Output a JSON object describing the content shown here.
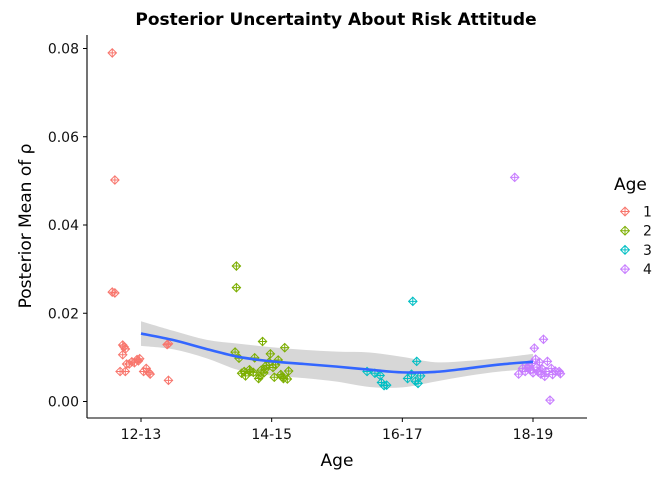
{
  "chart_data": {
    "type": "scatter",
    "title": "Posterior Uncertainty About Risk Attitude",
    "xlabel": "Age",
    "ylabel": "Posterior Mean of ρ",
    "categories": [
      "12-13",
      "14-15",
      "16-17",
      "18-19"
    ],
    "yticks": [
      "0.00",
      "0.02",
      "0.04",
      "0.06",
      "0.08"
    ],
    "ylim": [
      -0.0035,
      0.0835
    ],
    "grid": false,
    "legend": {
      "title": "Age",
      "placement": "right"
    },
    "series": [
      {
        "name": "1",
        "color": "#F8766D",
        "x": [
          -0.22,
          -0.2,
          -0.22,
          -0.2,
          -0.14,
          -0.14,
          -0.16,
          -0.12,
          -0.11,
          -0.12,
          -0.13,
          -0.09,
          -0.07,
          -0.05,
          -0.03,
          -0.02,
          -0.01,
          0.02,
          0.04,
          0.06,
          0.07,
          0.2,
          0.21,
          0.21
        ],
        "y": [
          0.079,
          0.0502,
          0.0248,
          0.0246,
          0.0128,
          0.0106,
          0.0068,
          0.0068,
          0.0085,
          0.0119,
          0.0124,
          0.0085,
          0.009,
          0.0088,
          0.0095,
          0.0092,
          0.0097,
          0.0068,
          0.0075,
          0.0066,
          0.0062,
          0.0129,
          0.0048,
          0.0131
        ]
      },
      {
        "name": "2",
        "color": "#7CAE00",
        "x": [
          0.73,
          0.73,
          0.72,
          0.75,
          0.77,
          0.79,
          0.8,
          0.83,
          0.84,
          0.86,
          0.87,
          0.9,
          0.91,
          0.92,
          0.93,
          0.94,
          0.95,
          0.96,
          0.98,
          0.99,
          1.01,
          1.02,
          1.03,
          1.05,
          1.07,
          1.08,
          1.09,
          1.1,
          1.12,
          1.13
        ],
        "y": [
          0.0307,
          0.0258,
          0.0112,
          0.0098,
          0.0064,
          0.0068,
          0.0058,
          0.0072,
          0.0068,
          0.0066,
          0.0099,
          0.0052,
          0.0058,
          0.0071,
          0.0136,
          0.0065,
          0.0073,
          0.0082,
          0.0089,
          0.0108,
          0.0077,
          0.0055,
          0.0083,
          0.0094,
          0.0061,
          0.0056,
          0.0052,
          0.0122,
          0.0051,
          0.0069
        ]
      },
      {
        "name": "3",
        "color": "#00BFC4",
        "x": [
          1.73,
          1.79,
          1.83,
          1.84,
          1.86,
          1.88,
          2.04,
          2.07,
          2.08,
          2.11,
          2.12,
          2.1,
          2.14
        ],
        "y": [
          0.0068,
          0.0064,
          0.0059,
          0.0043,
          0.0036,
          0.0037,
          0.0052,
          0.0062,
          0.0227,
          0.0091,
          0.0041,
          0.0046,
          0.0058
        ]
      },
      {
        "name": "4",
        "color": "#C77CFF",
        "x": [
          2.86,
          2.89,
          2.92,
          2.94,
          2.96,
          2.97,
          2.98,
          2.99,
          3.0,
          3.01,
          3.02,
          3.03,
          3.04,
          3.05,
          3.06,
          3.07,
          3.08,
          3.09,
          3.1,
          3.11,
          3.13,
          3.14,
          3.15,
          3.17,
          3.2,
          3.21
        ],
        "y": [
          0.0508,
          0.0062,
          0.0075,
          0.0068,
          0.0076,
          0.0082,
          0.0071,
          0.0086,
          0.0065,
          0.0121,
          0.0096,
          0.0078,
          0.0067,
          0.0089,
          0.0062,
          0.0074,
          0.0141,
          0.0057,
          0.0068,
          0.0091,
          0.0003,
          0.0075,
          0.0061,
          0.0069,
          0.0068,
          0.0063
        ]
      }
    ],
    "smooth": {
      "color": "#3366FF",
      "band_color": "#BEBEBE",
      "x": [
        0,
        0.25,
        0.5,
        0.75,
        1,
        1.25,
        1.5,
        1.75,
        2,
        2.25,
        2.5,
        2.75,
        3
      ],
      "y": [
        0.0154,
        0.0139,
        0.0119,
        0.0101,
        0.0091,
        0.0085,
        0.0079,
        0.0072,
        0.0066,
        0.0067,
        0.0075,
        0.0084,
        0.009
      ],
      "lower": [
        0.0126,
        0.0118,
        0.0098,
        0.0071,
        0.0059,
        0.0053,
        0.0045,
        0.0033,
        0.0032,
        0.0045,
        0.0058,
        0.0068,
        0.0073
      ],
      "upper": [
        0.0182,
        0.016,
        0.014,
        0.0131,
        0.0123,
        0.0117,
        0.0113,
        0.0111,
        0.0101,
        0.0089,
        0.0092,
        0.0099,
        0.0108
      ]
    }
  }
}
